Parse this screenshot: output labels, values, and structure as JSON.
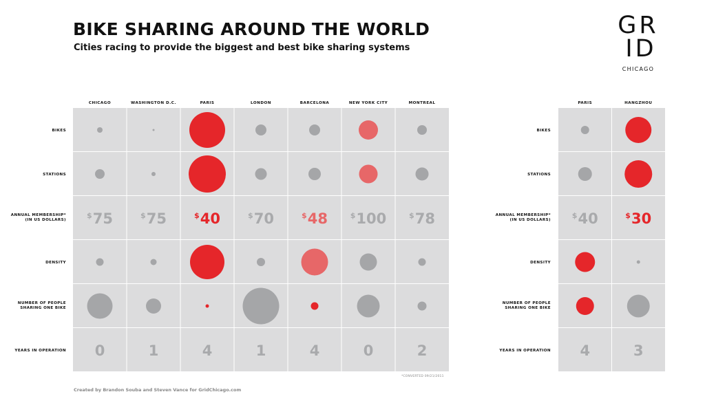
{
  "header": {
    "title": "BIKE SHARING AROUND THE WORLD",
    "subtitle": "Cities racing to provide the biggest and best bike sharing systems"
  },
  "logo": {
    "line1": "GR",
    "line2": "ID",
    "line3": "CHICAGO"
  },
  "footer": {
    "credit": "Created by Brandon Souba and Steven Vance for GridChicago.com",
    "note": "*CONVERTED 09/21/2011"
  },
  "colors": {
    "cell": "#dcdcdd",
    "grey_mark": "#a5a6a8",
    "red": "#e5262a",
    "light_red": "#e76768",
    "grey_text": "#a9aaac"
  },
  "chart_data": [
    {
      "type": "table",
      "columns": [
        "CHICAGO",
        "WASHINGTON D.C.",
        "PARIS",
        "LONDON",
        "BARCELONA",
        "NEW YORK CITY",
        "MONTREAL"
      ],
      "rows": [
        {
          "label": "BIKES",
          "kind": "circle",
          "values": [
            8,
            3,
            52,
            16,
            16,
            28,
            14
          ],
          "colors": [
            "grey",
            "grey",
            "red",
            "grey",
            "grey",
            "lightred",
            "grey"
          ]
        },
        {
          "label": "STATIONS",
          "kind": "circle",
          "values": [
            14,
            6,
            54,
            17,
            18,
            27,
            19
          ],
          "colors": [
            "grey",
            "grey",
            "red",
            "grey",
            "grey",
            "lightred",
            "grey"
          ]
        },
        {
          "label": "ANNUAL MEMBERSHIP*",
          "label2": "(IN US DOLLARS)",
          "kind": "text",
          "values": [
            "75",
            "75",
            "40",
            "70",
            "48",
            "100",
            "78"
          ],
          "colors": [
            "grey",
            "grey",
            "red",
            "grey",
            "lightred",
            "grey",
            "grey"
          ],
          "currency": "$"
        },
        {
          "label": "DENSITY",
          "kind": "circle",
          "values": [
            11,
            9,
            50,
            12,
            39,
            25,
            11
          ],
          "colors": [
            "grey",
            "grey",
            "red",
            "grey",
            "lightred",
            "grey",
            "grey"
          ]
        },
        {
          "label": "NUMBER OF PEOPLE",
          "label2": "SHARING ONE BIKE",
          "kind": "circle",
          "values": [
            37,
            22,
            5,
            53,
            11,
            33,
            13
          ],
          "colors": [
            "grey",
            "grey",
            "red",
            "grey",
            "red",
            "grey",
            "grey"
          ]
        },
        {
          "label": "YEARS IN OPERATION",
          "kind": "text",
          "values": [
            "0",
            "1",
            "4",
            "1",
            "4",
            "0",
            "2"
          ],
          "colors": [
            "grey",
            "grey",
            "grey",
            "grey",
            "grey",
            "grey",
            "grey"
          ]
        }
      ]
    },
    {
      "type": "table",
      "columns": [
        "PARIS",
        "HANGZHOU"
      ],
      "rows": [
        {
          "label": "BIKES",
          "kind": "circle",
          "values": [
            12,
            38
          ],
          "colors": [
            "grey",
            "red"
          ]
        },
        {
          "label": "STATIONS",
          "kind": "circle",
          "values": [
            20,
            40
          ],
          "colors": [
            "grey",
            "red"
          ]
        },
        {
          "label": "ANNUAL MEMBERSHIP*",
          "label2": "(IN US DOLLARS)",
          "kind": "text",
          "values": [
            "40",
            "30"
          ],
          "colors": [
            "grey",
            "red"
          ],
          "currency": "$"
        },
        {
          "label": "DENSITY",
          "kind": "circle",
          "values": [
            29,
            5
          ],
          "colors": [
            "red",
            "grey"
          ]
        },
        {
          "label": "NUMBER OF PEOPLE",
          "label2": "SHARING ONE BIKE",
          "kind": "circle",
          "values": [
            26,
            33
          ],
          "colors": [
            "red",
            "grey"
          ]
        },
        {
          "label": "YEARS IN OPERATION",
          "kind": "text",
          "values": [
            "4",
            "3"
          ],
          "colors": [
            "grey",
            "grey"
          ]
        }
      ]
    }
  ]
}
